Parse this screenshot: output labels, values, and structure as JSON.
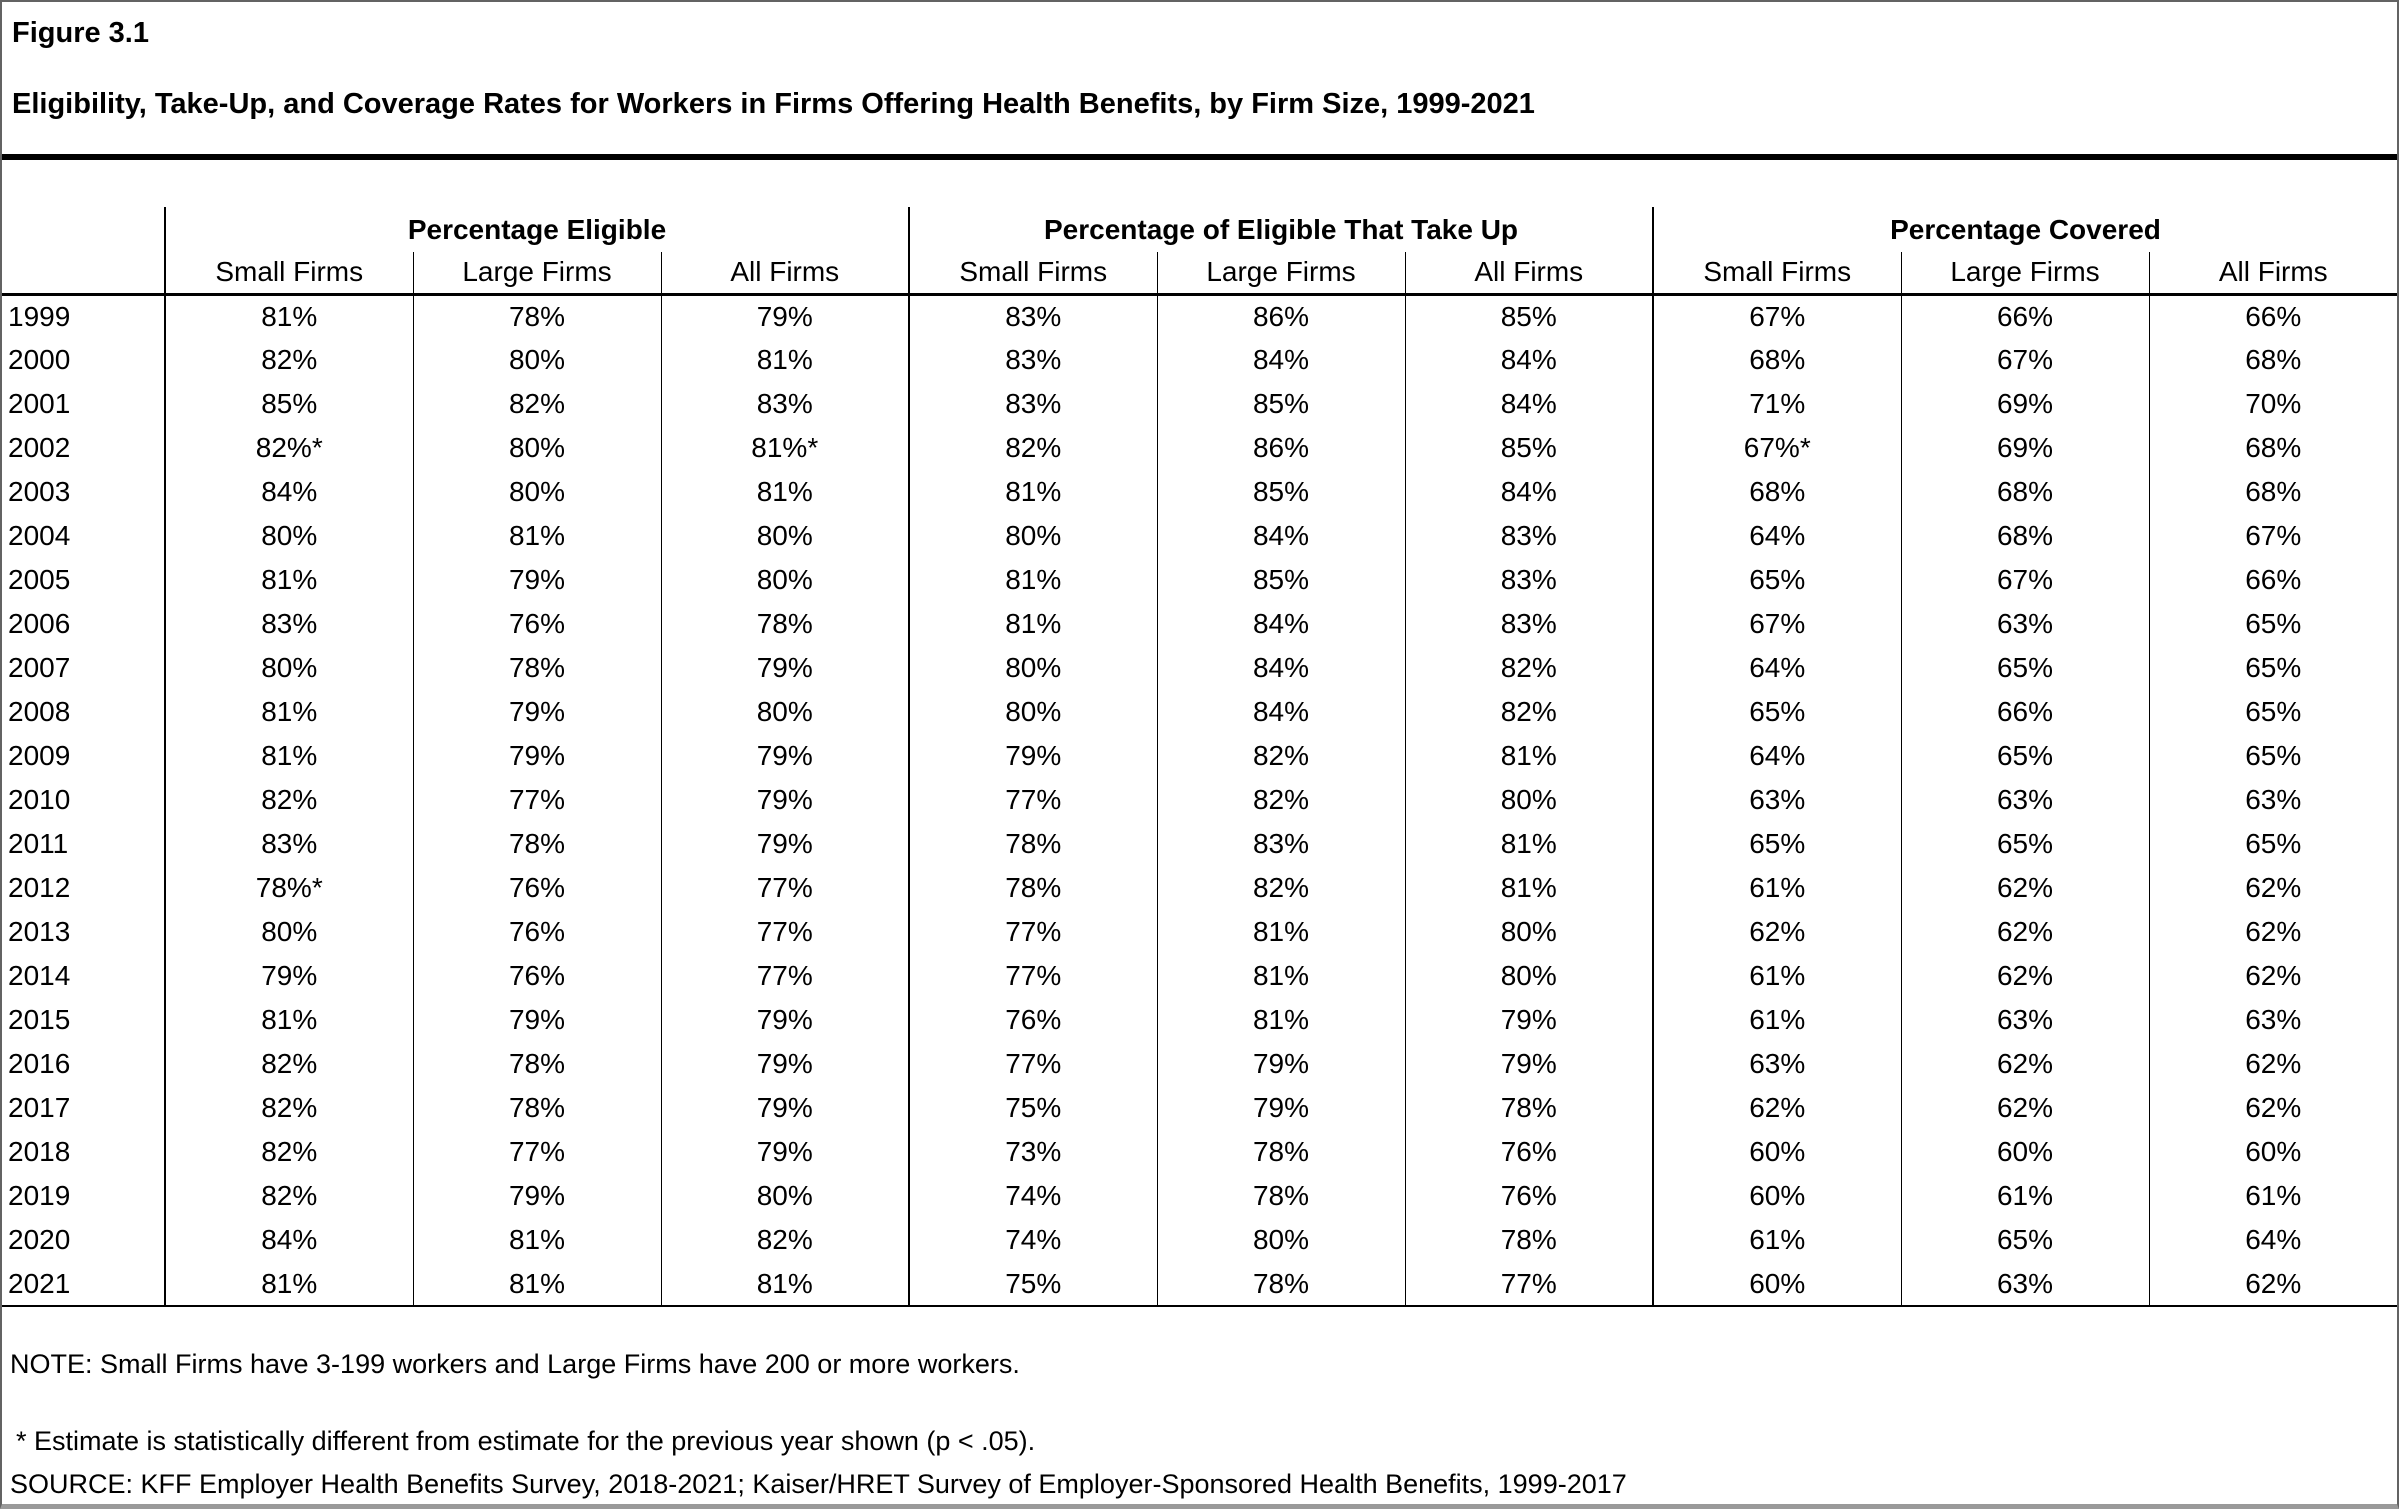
{
  "figure": {
    "label": "Figure 3.1",
    "title": "Eligibility, Take-Up, and Coverage Rates for Workers in Firms Offering Health Benefits, by Firm Size, 1999-2021"
  },
  "table": {
    "groups": [
      "Percentage Eligible",
      "Percentage of Eligible That Take Up",
      "Percentage Covered"
    ],
    "subheaders": [
      "Small Firms",
      "Large Firms",
      "All Firms"
    ],
    "rows": [
      {
        "year": "1999",
        "values": [
          "81%",
          "78%",
          "79%",
          "83%",
          "86%",
          "85%",
          "67%",
          "66%",
          "66%"
        ]
      },
      {
        "year": "2000",
        "values": [
          "82%",
          "80%",
          "81%",
          "83%",
          "84%",
          "84%",
          "68%",
          "67%",
          "68%"
        ]
      },
      {
        "year": "2001",
        "values": [
          "85%",
          "82%",
          "83%",
          "83%",
          "85%",
          "84%",
          "71%",
          "69%",
          "70%"
        ]
      },
      {
        "year": "2002",
        "values": [
          "82%*",
          "80%",
          "81%*",
          "82%",
          "86%",
          "85%",
          "67%*",
          "69%",
          "68%"
        ]
      },
      {
        "year": "2003",
        "values": [
          "84%",
          "80%",
          "81%",
          "81%",
          "85%",
          "84%",
          "68%",
          "68%",
          "68%"
        ]
      },
      {
        "year": "2004",
        "values": [
          "80%",
          "81%",
          "80%",
          "80%",
          "84%",
          "83%",
          "64%",
          "68%",
          "67%"
        ]
      },
      {
        "year": "2005",
        "values": [
          "81%",
          "79%",
          "80%",
          "81%",
          "85%",
          "83%",
          "65%",
          "67%",
          "66%"
        ]
      },
      {
        "year": "2006",
        "values": [
          "83%",
          "76%",
          "78%",
          "81%",
          "84%",
          "83%",
          "67%",
          "63%",
          "65%"
        ]
      },
      {
        "year": "2007",
        "values": [
          "80%",
          "78%",
          "79%",
          "80%",
          "84%",
          "82%",
          "64%",
          "65%",
          "65%"
        ]
      },
      {
        "year": "2008",
        "values": [
          "81%",
          "79%",
          "80%",
          "80%",
          "84%",
          "82%",
          "65%",
          "66%",
          "65%"
        ]
      },
      {
        "year": "2009",
        "values": [
          "81%",
          "79%",
          "79%",
          "79%",
          "82%",
          "81%",
          "64%",
          "65%",
          "65%"
        ]
      },
      {
        "year": "2010",
        "values": [
          "82%",
          "77%",
          "79%",
          "77%",
          "82%",
          "80%",
          "63%",
          "63%",
          "63%"
        ]
      },
      {
        "year": "2011",
        "values": [
          "83%",
          "78%",
          "79%",
          "78%",
          "83%",
          "81%",
          "65%",
          "65%",
          "65%"
        ]
      },
      {
        "year": "2012",
        "values": [
          "78%*",
          "76%",
          "77%",
          "78%",
          "82%",
          "81%",
          "61%",
          "62%",
          "62%"
        ]
      },
      {
        "year": "2013",
        "values": [
          "80%",
          "76%",
          "77%",
          "77%",
          "81%",
          "80%",
          "62%",
          "62%",
          "62%"
        ]
      },
      {
        "year": "2014",
        "values": [
          "79%",
          "76%",
          "77%",
          "77%",
          "81%",
          "80%",
          "61%",
          "62%",
          "62%"
        ]
      },
      {
        "year": "2015",
        "values": [
          "81%",
          "79%",
          "79%",
          "76%",
          "81%",
          "79%",
          "61%",
          "63%",
          "63%"
        ]
      },
      {
        "year": "2016",
        "values": [
          "82%",
          "78%",
          "79%",
          "77%",
          "79%",
          "79%",
          "63%",
          "62%",
          "62%"
        ]
      },
      {
        "year": "2017",
        "values": [
          "82%",
          "78%",
          "79%",
          "75%",
          "79%",
          "78%",
          "62%",
          "62%",
          "62%"
        ]
      },
      {
        "year": "2018",
        "values": [
          "82%",
          "77%",
          "79%",
          "73%",
          "78%",
          "76%",
          "60%",
          "60%",
          "60%"
        ]
      },
      {
        "year": "2019",
        "values": [
          "82%",
          "79%",
          "80%",
          "74%",
          "78%",
          "76%",
          "60%",
          "61%",
          "61%"
        ]
      },
      {
        "year": "2020",
        "values": [
          "84%",
          "81%",
          "82%",
          "74%",
          "80%",
          "78%",
          "61%",
          "65%",
          "64%"
        ]
      },
      {
        "year": "2021",
        "values": [
          "81%",
          "81%",
          "81%",
          "75%",
          "78%",
          "77%",
          "60%",
          "63%",
          "62%"
        ]
      }
    ]
  },
  "notes": {
    "note": "NOTE: Small Firms have 3-199 workers and Large Firms have 200 or more workers.",
    "asterisk": "* Estimate is statistically different from estimate for the previous year shown (p < .05).",
    "source": "SOURCE: KFF Employer Health Benefits Survey, 2018-2021; Kaiser/HRET Survey of Employer-Sponsored Health Benefits, 1999-2017"
  }
}
